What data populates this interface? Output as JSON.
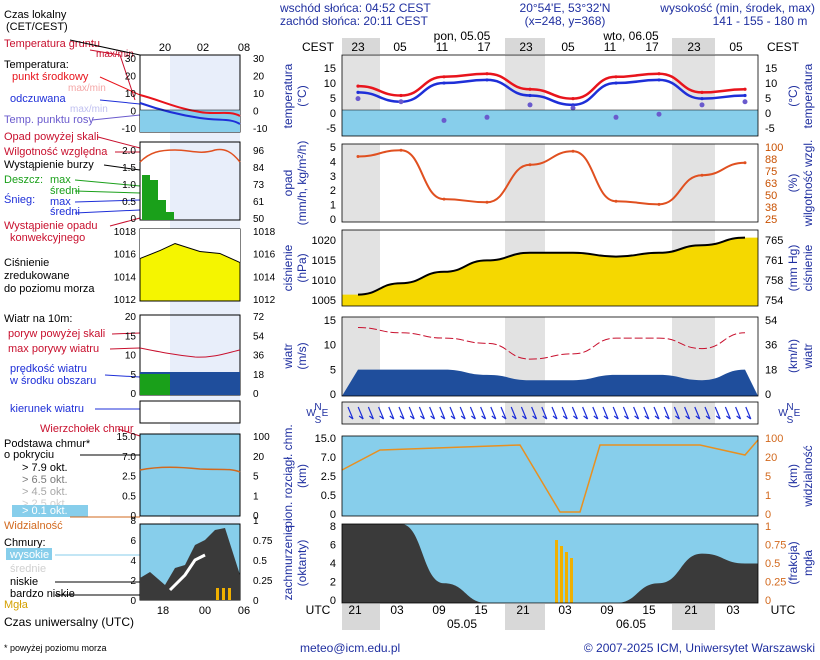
{
  "header": {
    "sunrise": "wschód słońca: 04:52 CEST",
    "sunset": "zachód słońca: 20:11 CEST",
    "coords": "20°54'E, 53°32'N",
    "grid": "(x=248, y=368)",
    "elevation_title": "wysokość (min, środek, max)",
    "elevation_values": "141 - 155 - 180 m"
  },
  "legend": {
    "local_time": "Czas lokalny",
    "local_time_tz": "(CET/CEST)",
    "soil_temp": "Temperatura gruntu",
    "maxmin": "max/min",
    "temperature": "Temperatura:",
    "midpoint": "punkt środkowy",
    "maxmin2": "max/min",
    "felt": "odczuwana",
    "maxmin3": "max/min",
    "dewpoint": "Temp. punktu rosy",
    "precip_above": "Opad powyżej skali",
    "humidity": "Wilgotność względna",
    "storm": "Wystąpienie burzy",
    "rain": "Deszcz:",
    "rain_max": "max",
    "rain_avg": "średni",
    "snow": "Śnieg:",
    "snow_max": "max",
    "snow_avg": "średni",
    "convective_1": "Wystąpienie opadu",
    "convective_2": "konwekcyjnego",
    "pressure_1": "Ciśnienie",
    "pressure_2": "zredukowane",
    "pressure_3": "do poziomu morza",
    "wind_10m": "Wiatr na 10m:",
    "gust_above": "poryw powyżej skali",
    "max_gust": "max porywy wiatru",
    "wind_speed_1": "prędkość wiatru",
    "wind_speed_2": "w środku obszaru",
    "wind_dir": "kierunek wiatru",
    "cumulus_top": "Wierzchołek chmur",
    "cloud_base_1": "Podstawa chmur*",
    "cloud_base_2": "o pokryciu",
    "okt_79": "> 7.9 okt.",
    "okt_65": "> 6.5 okt.",
    "okt_45": "> 4.5 okt.",
    "okt_25": "> 2.5 okt.",
    "okt_01": "> 0.1 okt.",
    "visibility": "Widzialność",
    "clouds": "Chmury:",
    "high": "wysokie",
    "mid": "średnie",
    "low": "niskie",
    "very_low": "bardzo niskie",
    "fog": "Mgła",
    "utc": "Czas uniwersalny (UTC)",
    "footnote": "* powyżej poziomu morza"
  },
  "mini_axes": {
    "top_ticks": [
      "20",
      "02",
      "08"
    ],
    "bottom_ticks": [
      "18",
      "00",
      "06"
    ],
    "temp_left": [
      "30",
      "20",
      "10",
      "0",
      "-10"
    ],
    "temp_right": [
      "30",
      "20",
      "10",
      "0",
      "-10"
    ],
    "precip_left": [
      "2.0",
      "1.5",
      "1.0",
      "0.5",
      "0"
    ],
    "precip_right": [
      "96",
      "84",
      "73",
      "61",
      "50"
    ],
    "pres_left": [
      "1018",
      "1016",
      "1014",
      "1012"
    ],
    "pres_right": [
      "1018",
      "1016",
      "1014",
      "1012"
    ],
    "wind_left": [
      "20",
      "15",
      "10",
      "5",
      "0"
    ],
    "wind_right": [
      "72",
      "54",
      "36",
      "18",
      "0"
    ],
    "cloud_left": [
      "15.0",
      "7.0",
      "2.5",
      "0.5",
      "0"
    ],
    "cloud_right": [
      "100",
      "20",
      "5",
      "1",
      "0"
    ],
    "cov_left": [
      "8",
      "6",
      "4",
      "2",
      "0"
    ],
    "cov_right": [
      "1",
      "0.75",
      "0.5",
      "0.25",
      "0"
    ]
  },
  "main_axes": {
    "cest": "CEST",
    "utc": "UTC",
    "day1": "pon, 05.05",
    "day2": "wto, 06.05",
    "day1_utc": "05.05",
    "day2_utc": "06.05",
    "cest_ticks": [
      "23",
      "05",
      "11",
      "17",
      "23",
      "05",
      "11",
      "17",
      "23",
      "05"
    ],
    "utc_ticks": [
      "21",
      "03",
      "09",
      "15",
      "21",
      "03",
      "09",
      "15",
      "21",
      "03"
    ],
    "temp_label": "temperatura",
    "temp_unit": "(°C)",
    "temp_ticks": [
      "15",
      "10",
      "5",
      "0",
      "-5"
    ],
    "precip_label": "opad",
    "precip_unit": "(mm/h, kg/m²/h)",
    "precip_ticks": [
      "5",
      "4",
      "3",
      "2",
      "1",
      "0"
    ],
    "hum_label": "wilgotność wzgl.",
    "hum_unit": "(%)",
    "hum_ticks": [
      "100",
      "88",
      "75",
      "63",
      "50",
      "38",
      "25"
    ],
    "pres_label": "ciśnienie",
    "pres_unit": "(hPa)",
    "pres_ticks": [
      "1020",
      "1015",
      "1010",
      "1005"
    ],
    "pres_label_r": "ciśnienie",
    "pres_unit_r": "(mm Hg)",
    "pres_ticks_r": [
      "765",
      "761",
      "758",
      "754"
    ],
    "wind_label": "wiatr",
    "wind_unit": "(m/s)",
    "wind_ticks": [
      "15",
      "10",
      "5",
      "0"
    ],
    "wind_label_r": "wiatr",
    "wind_unit_r": "(km/h)",
    "wind_ticks_r": [
      "54",
      "36",
      "18",
      "0"
    ],
    "compass": [
      "N",
      "W",
      "S",
      "E"
    ],
    "cloud_label": "pion. rozciągł. chm.",
    "cloud_unit": "(km)",
    "cloud_ticks": [
      "15.0",
      "7.0",
      "2.5",
      "0.5",
      "0"
    ],
    "vis_label": "widzialność",
    "vis_unit": "(km)",
    "vis_ticks": [
      "100",
      "20",
      "5",
      "1",
      "0"
    ],
    "cov_label": "zachmurzenie",
    "cov_unit": "(oktanty)",
    "cov_ticks": [
      "8",
      "6",
      "4",
      "2",
      "0"
    ],
    "fog_label": "mgła",
    "fog_unit": "(frakcja)",
    "fog_ticks": [
      "1",
      "0.75",
      "0.5",
      "0.25",
      "0"
    ]
  },
  "footer": {
    "email": "meteo@icm.edu.pl",
    "copyright": "© 2007-2025 ICM, Uniwersytet Warszawski"
  },
  "colors": {
    "text": "#1f2fa0",
    "red": "#e8141c",
    "blue": "#1e2fd8",
    "orange": "#ff8c00",
    "sky": "#87ceeb",
    "night": "#d8d8d8",
    "cloud_dark": "#3a3a3a"
  },
  "chart_data": [
    {
      "type": "line",
      "title": "temperatura",
      "ylabel": "(°C)",
      "ylim": [
        -8,
        18
      ],
      "x": [
        "23",
        "05",
        "11",
        "17",
        "23",
        "05",
        "11",
        "17",
        "23",
        "05"
      ],
      "series": [
        {
          "name": "punkt środkowy",
          "values": [
            8,
            5,
            11,
            12,
            7,
            4,
            11,
            12,
            6,
            7
          ]
        },
        {
          "name": "odczuwana",
          "values": [
            6,
            3,
            9,
            10,
            5,
            2,
            9,
            10,
            4,
            5
          ]
        },
        {
          "name": "Temp. punktu rosy",
          "values": [
            4,
            3,
            -3,
            -2,
            2,
            1,
            -2,
            -1,
            2,
            3
          ]
        }
      ]
    },
    {
      "type": "line",
      "title": "wilgotność wzgl.",
      "ylabel": "(%)",
      "ylim": [
        25,
        100
      ],
      "x": [
        "23",
        "05",
        "11",
        "17",
        "23",
        "05",
        "11",
        "17",
        "23",
        "05"
      ],
      "values": [
        88,
        94,
        47,
        44,
        80,
        93,
        45,
        42,
        70,
        82
      ]
    },
    {
      "type": "area",
      "title": "ciśnienie",
      "ylabel": "(hPa)",
      "ylim": [
        1002,
        1022
      ],
      "x": [
        "23",
        "05",
        "11",
        "17",
        "23",
        "05",
        "11",
        "17",
        "23",
        "05"
      ],
      "values": [
        1005,
        1008,
        1011,
        1014,
        1016,
        1016,
        1015,
        1016,
        1018,
        1020
      ]
    },
    {
      "type": "area",
      "title": "wiatr",
      "ylabel": "(m/s)",
      "ylim": [
        0,
        15
      ],
      "x": [
        "23",
        "05",
        "11",
        "17",
        "23",
        "05",
        "11",
        "17",
        "23",
        "05"
      ],
      "series": [
        {
          "name": "prędkość wiatru",
          "values": [
            5,
            5,
            5,
            4,
            3,
            3,
            4,
            4,
            3,
            5
          ]
        },
        {
          "name": "max porywy wiatru",
          "values": [
            13,
            12,
            11,
            10,
            7,
            8,
            11,
            11,
            9,
            12
          ]
        }
      ]
    },
    {
      "type": "area",
      "title": "zachmurzenie",
      "ylabel": "(oktanty)",
      "ylim": [
        0,
        8
      ],
      "x": [
        "21",
        "03",
        "09",
        "15",
        "21",
        "03",
        "09",
        "15",
        "21",
        "03"
      ],
      "values": [
        8,
        8,
        2,
        0,
        0,
        0,
        0,
        2,
        5,
        4
      ]
    }
  ]
}
